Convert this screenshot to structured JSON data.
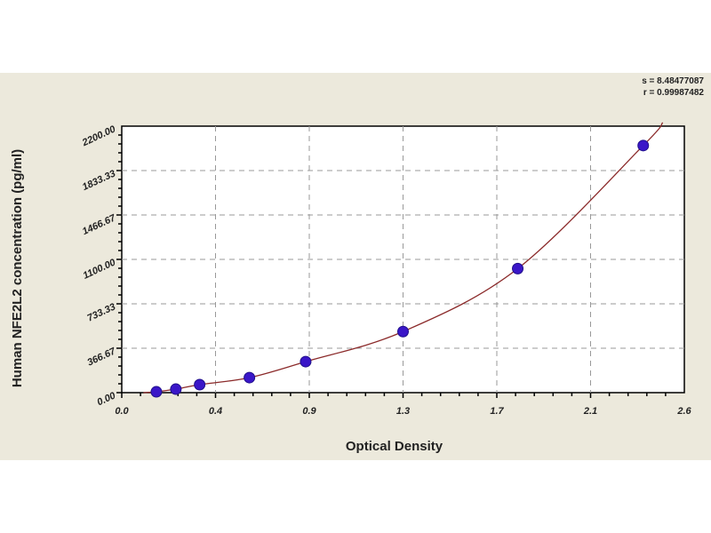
{
  "chart_data": {
    "type": "scatter",
    "title": "",
    "xlabel": "Optical Density",
    "ylabel": "Human NFE2L2 concentration (pg/ml)",
    "xlim": [
      0,
      2.6
    ],
    "ylim": [
      0,
      2200
    ],
    "x_tick_labels": [
      "0.0",
      "0.4",
      "0.9",
      "1.3",
      "1.7",
      "2.1",
      "2.6"
    ],
    "y_tick_labels": [
      "0.00",
      "366.67",
      "733.33",
      "1100.00",
      "1466.67",
      "1833.33",
      "2200.00"
    ],
    "grid": true,
    "annotations": [
      "s = 8.48477087",
      "r = 0.99987482"
    ],
    "series": [
      {
        "x": [
          0.16,
          0.25,
          0.36,
          0.59,
          0.85,
          1.3,
          1.83,
          2.41
        ],
        "y": [
          7,
          29,
          66,
          124,
          256,
          504,
          1024,
          2040
        ],
        "marker_color": "#3a16c8",
        "line_color": "#8b2a2a",
        "fit": "smooth curve"
      }
    ]
  }
}
